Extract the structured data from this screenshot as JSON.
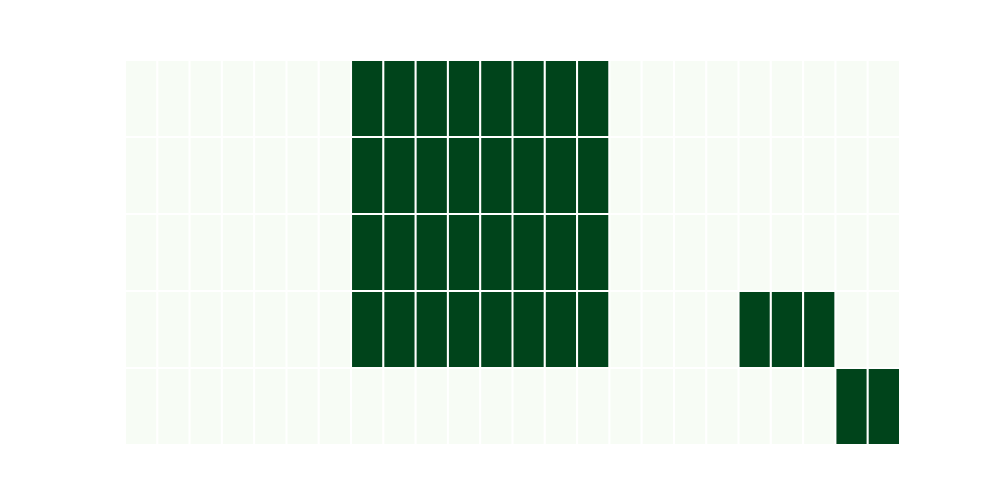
{
  "chart_data": {
    "type": "heatmap",
    "title": "",
    "xlabel": "",
    "ylabel": "",
    "grid": false,
    "legend": "none",
    "colors": {
      "low": "#f7fcf5",
      "high": "#00441b",
      "cell_border": "#ffffff"
    },
    "n_rows": 5,
    "n_cols": 24,
    "values": [
      [
        0,
        0,
        0,
        0,
        0,
        0,
        0,
        1,
        1,
        1,
        1,
        1,
        1,
        1,
        1,
        0,
        0,
        0,
        0,
        0,
        0,
        0,
        0,
        0
      ],
      [
        0,
        0,
        0,
        0,
        0,
        0,
        0,
        1,
        1,
        1,
        1,
        1,
        1,
        1,
        1,
        0,
        0,
        0,
        0,
        0,
        0,
        0,
        0,
        0
      ],
      [
        0,
        0,
        0,
        0,
        0,
        0,
        0,
        1,
        1,
        1,
        1,
        1,
        1,
        1,
        1,
        0,
        0,
        0,
        0,
        0,
        0,
        0,
        0,
        0
      ],
      [
        0,
        0,
        0,
        0,
        0,
        0,
        0,
        1,
        1,
        1,
        1,
        1,
        1,
        1,
        1,
        0,
        0,
        0,
        0,
        1,
        1,
        1,
        0,
        0
      ],
      [
        0,
        0,
        0,
        0,
        0,
        0,
        0,
        0,
        0,
        0,
        0,
        0,
        0,
        0,
        0,
        0,
        0,
        0,
        0,
        0,
        0,
        0,
        1,
        1
      ]
    ]
  }
}
